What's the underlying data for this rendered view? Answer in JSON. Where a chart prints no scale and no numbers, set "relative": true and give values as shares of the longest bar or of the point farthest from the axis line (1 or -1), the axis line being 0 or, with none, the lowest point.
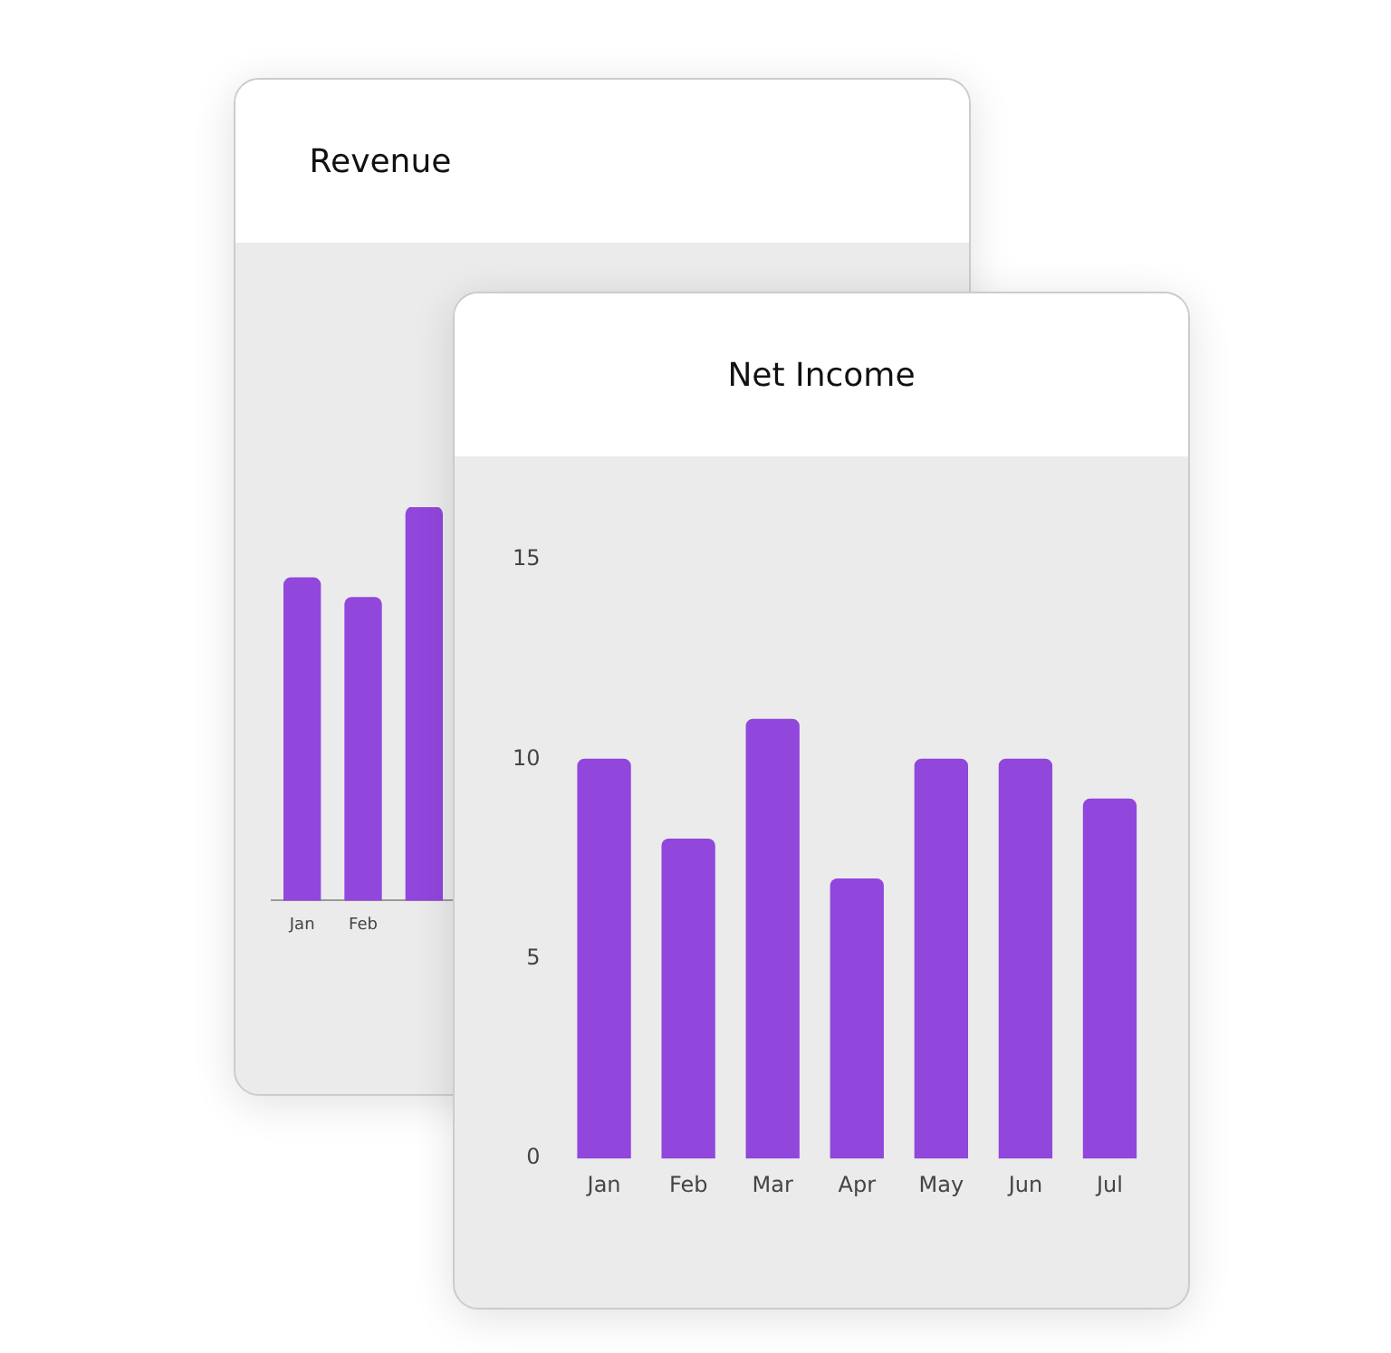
{
  "chart_data": [
    {
      "type": "bar",
      "title": "Revenue",
      "categories": [
        "Jan",
        "Feb",
        null
      ],
      "values": [
        0.82,
        0.77,
        1
      ],
      "color": "#9146dc",
      "relative": true
    },
    {
      "type": "bar",
      "title": "Net Income",
      "categories": [
        "Jan",
        "Feb",
        "Mar",
        "Apr",
        "May",
        "Jun",
        "Jul"
      ],
      "values": [
        10,
        8,
        11,
        7,
        10,
        10,
        9
      ],
      "color": "#9146dc",
      "ylim": [
        0,
        15
      ],
      "yticks": [
        0,
        5,
        10,
        15
      ]
    }
  ]
}
